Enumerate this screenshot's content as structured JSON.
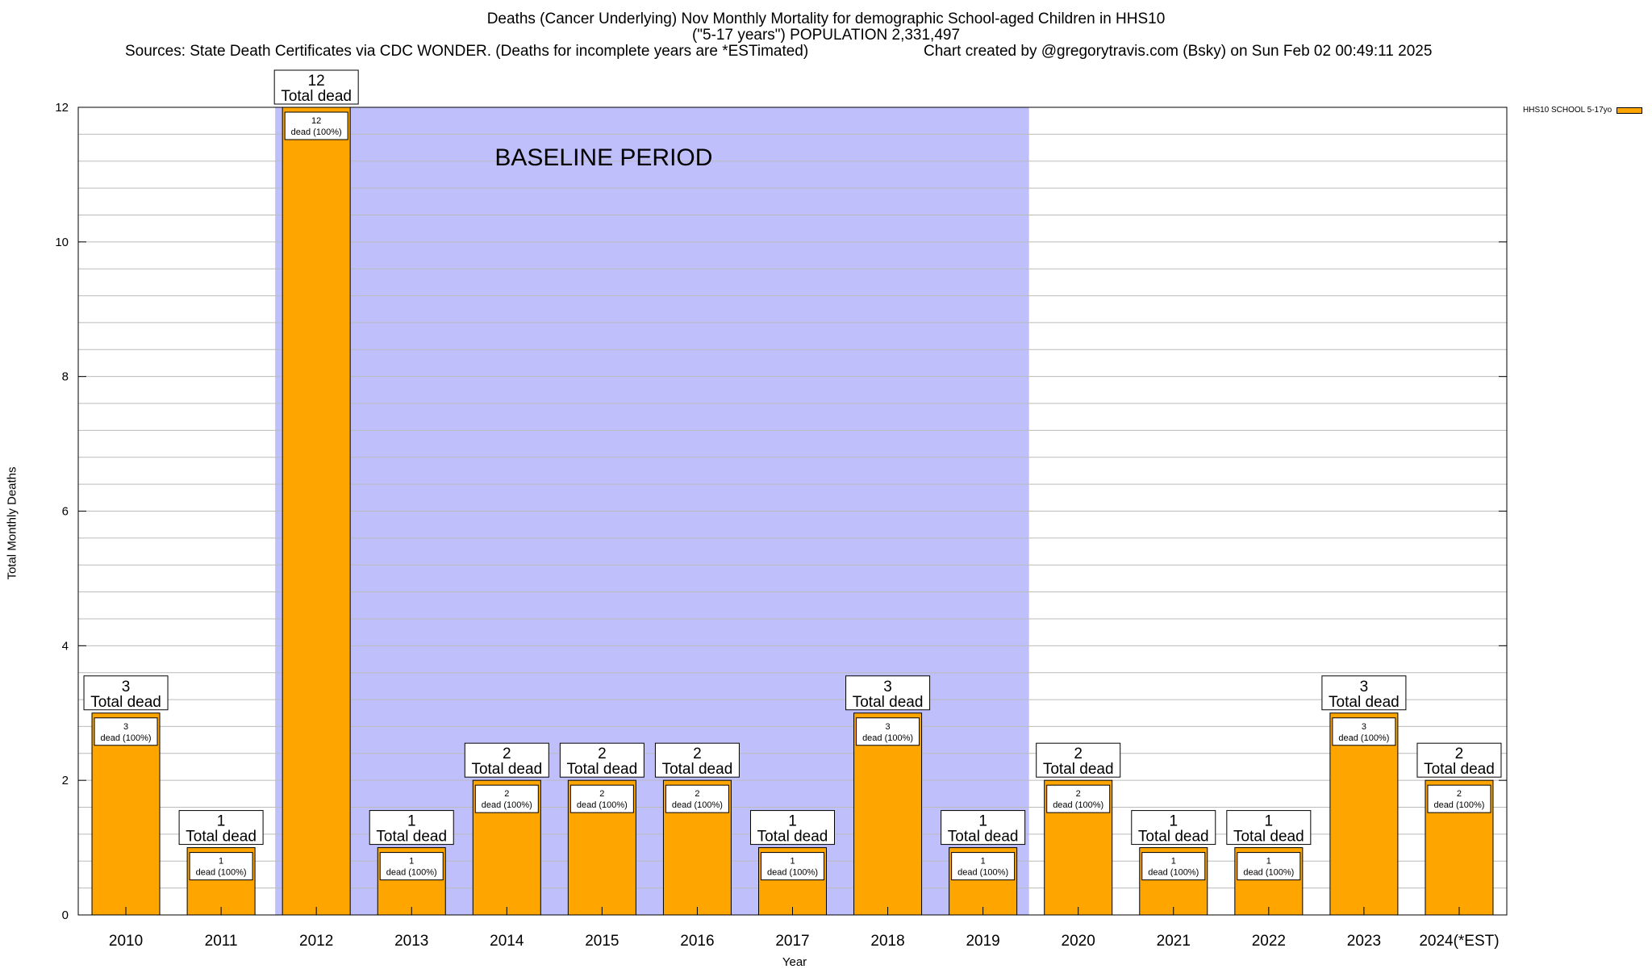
{
  "title_line1": "Deaths (Cancer Underlying) Nov Monthly Mortality for demographic School-aged Children in HHS10",
  "title_line2": "(\"5-17 years\") POPULATION 2,331,497",
  "sources": "Sources: State Death Certificates via CDC WONDER. (Deaths for incomplete years are *ESTimated)",
  "credit": "Chart created by @gregorytravis.com (Bsky) on Sun Feb 02 00:49:11 2025",
  "colors": {
    "bar": "#FFA500",
    "baseline_band": "#BFBFFC",
    "grid": "#BBBBBB"
  },
  "chart_data": {
    "type": "bar",
    "title": "Deaths (Cancer Underlying) Nov Monthly Mortality for demographic School-aged Children in HHS10",
    "xlabel": "Year",
    "ylabel": "Total Monthly Deaths",
    "ylim": [
      0,
      12
    ],
    "yticks": [
      0,
      2,
      4,
      6,
      8,
      10,
      12
    ],
    "grid": true,
    "legend_position": "top-right",
    "categories": [
      "2010",
      "2011",
      "2012",
      "2013",
      "2014",
      "2015",
      "2016",
      "2017",
      "2018",
      "2019",
      "2020",
      "2021",
      "2022",
      "2023",
      "2024(*EST)"
    ],
    "series": [
      {
        "name": "HHS10 SCHOOL 5-17yo",
        "values": [
          3,
          1,
          12,
          1,
          2,
          2,
          2,
          1,
          3,
          1,
          2,
          1,
          1,
          3,
          2
        ]
      }
    ],
    "total_label_text": "Total dead",
    "segment_label_text": "dead (100%)",
    "baseline_band": {
      "label": "BASELINE PERIOD",
      "from": "2012",
      "to": "2019"
    }
  }
}
